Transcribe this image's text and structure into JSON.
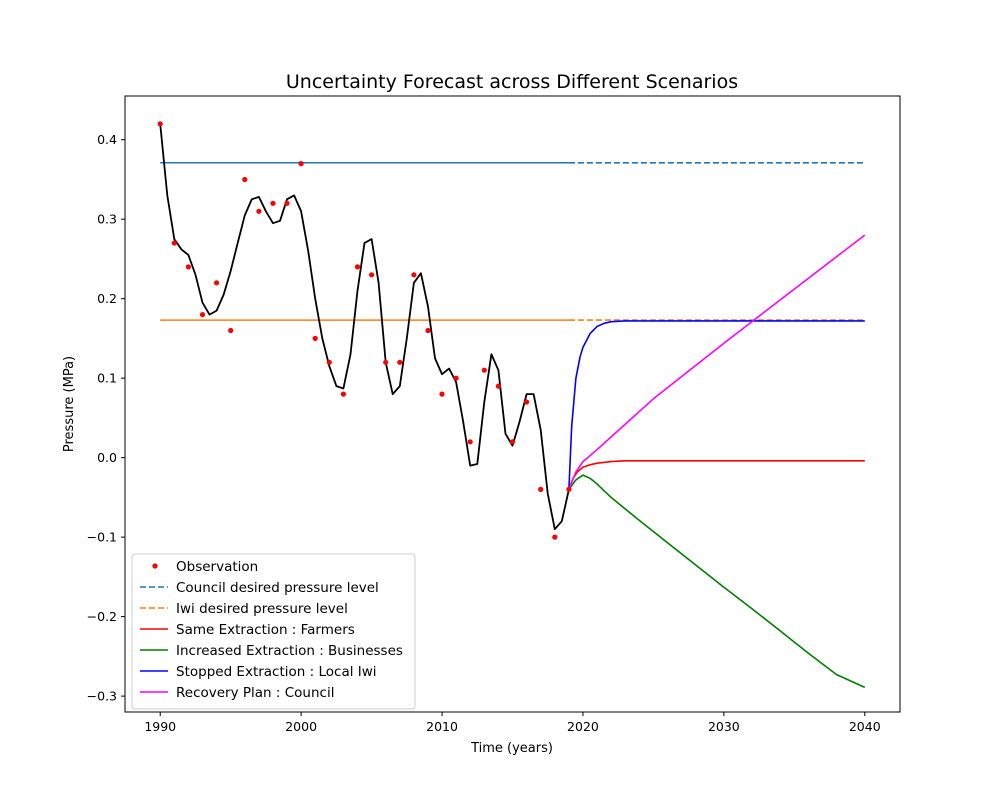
{
  "chart_data": {
    "type": "line",
    "title": "Uncertainty Forecast across Different Scenarios",
    "xlabel": "Time (years)",
    "ylabel": "Pressure (MPa)",
    "xlim": [
      1987.5,
      2042.5
    ],
    "ylim": [
      -0.32,
      0.455
    ],
    "x_ticks": [
      1990,
      2000,
      2010,
      2020,
      2030,
      2040
    ],
    "y_ticks": [
      -0.3,
      -0.2,
      -0.1,
      0.0,
      0.1,
      0.2,
      0.3,
      0.4
    ],
    "grid": false,
    "legend_position": "lower-left",
    "colors": {
      "observation": "#ff0000",
      "council": "#1f77b4",
      "iwi": "#ff7f0e",
      "same": "#ff0000",
      "increased": "#008000",
      "stopped": "#0000ff",
      "recovery": "#ff00ff",
      "model": "#000000"
    },
    "observations": {
      "name": "Observation",
      "x": [
        1990,
        1991,
        1992,
        1993,
        1994,
        1995,
        1996,
        1997,
        1998,
        1999,
        2000,
        2001,
        2002,
        2003,
        2004,
        2005,
        2006,
        2007,
        2008,
        2009,
        2010,
        2011,
        2012,
        2013,
        2014,
        2015,
        2016,
        2017,
        2018,
        2019
      ],
      "y": [
        0.42,
        0.27,
        0.24,
        0.18,
        0.22,
        0.16,
        0.35,
        0.31,
        0.32,
        0.32,
        0.37,
        0.15,
        0.12,
        0.08,
        0.24,
        0.23,
        0.12,
        0.12,
        0.23,
        0.16,
        0.08,
        0.1,
        0.02,
        0.11,
        0.09,
        0.02,
        0.07,
        -0.04,
        -0.1,
        -0.04
      ]
    },
    "model_fit": {
      "x": [
        1990,
        1990.5,
        1991,
        1991.5,
        1992,
        1992.5,
        1993,
        1993.5,
        1994,
        1994.5,
        1995,
        1995.5,
        1996,
        1996.5,
        1997,
        1997.5,
        1998,
        1998.5,
        1999,
        1999.5,
        2000,
        2000.5,
        2001,
        2001.5,
        2002,
        2002.5,
        2003,
        2003.5,
        2004,
        2004.5,
        2005,
        2005.5,
        2006,
        2006.5,
        2007,
        2007.5,
        2008,
        2008.5,
        2009,
        2009.5,
        2010,
        2010.5,
        2011,
        2011.5,
        2012,
        2012.5,
        2013,
        2013.5,
        2014,
        2014.5,
        2015,
        2015.5,
        2016,
        2016.5,
        2017,
        2017.5,
        2018,
        2018.5,
        2019
      ],
      "y": [
        0.42,
        0.33,
        0.275,
        0.262,
        0.255,
        0.23,
        0.195,
        0.18,
        0.185,
        0.205,
        0.235,
        0.27,
        0.305,
        0.325,
        0.328,
        0.31,
        0.295,
        0.298,
        0.325,
        0.33,
        0.31,
        0.26,
        0.2,
        0.15,
        0.115,
        0.09,
        0.087,
        0.13,
        0.21,
        0.27,
        0.275,
        0.22,
        0.12,
        0.08,
        0.09,
        0.15,
        0.22,
        0.232,
        0.19,
        0.125,
        0.105,
        0.112,
        0.095,
        0.045,
        -0.01,
        -0.008,
        0.07,
        0.13,
        0.11,
        0.03,
        0.015,
        0.045,
        0.08,
        0.08,
        0.035,
        -0.045,
        -0.09,
        -0.08,
        -0.04
      ]
    },
    "series": [
      {
        "key": "council",
        "name": "Council desired pressure level",
        "style": "dashed",
        "color": "#1f77b4",
        "x": [
          2019,
          2040
        ],
        "y": [
          0.371,
          0.371
        ]
      },
      {
        "key": "iwi",
        "name": "Iwi desired pressure level",
        "style": "dashed",
        "color": "#ff7f0e",
        "x": [
          2019,
          2040
        ],
        "y": [
          0.173,
          0.173
        ]
      },
      {
        "key": "same",
        "name": "Same Extraction : Farmers",
        "style": "solid",
        "color": "#ff0000",
        "x": [
          2019,
          2019.3,
          2019.6,
          2020,
          2020.5,
          2021,
          2021.5,
          2022,
          2023,
          2024,
          2026,
          2030,
          2035,
          2040
        ],
        "y": [
          -0.04,
          -0.026,
          -0.018,
          -0.012,
          -0.009,
          -0.007,
          -0.006,
          -0.005,
          -0.004,
          -0.004,
          -0.004,
          -0.004,
          -0.004,
          -0.004
        ]
      },
      {
        "key": "increased",
        "name": "Increased Extraction : Businesses",
        "style": "solid",
        "color": "#008000",
        "x": [
          2019,
          2019.5,
          2020,
          2020.5,
          2021,
          2022,
          2024,
          2026,
          2028,
          2030,
          2032,
          2034,
          2036,
          2038,
          2040
        ],
        "y": [
          -0.04,
          -0.028,
          -0.022,
          -0.026,
          -0.033,
          -0.05,
          -0.079,
          -0.107,
          -0.135,
          -0.163,
          -0.19,
          -0.218,
          -0.246,
          -0.273,
          -0.289
        ]
      },
      {
        "key": "stopped",
        "name": "Stopped Extraction : Local Iwi",
        "style": "solid",
        "color": "#0000ff",
        "x": [
          2019,
          2019.2,
          2019.5,
          2019.8,
          2020,
          2020.5,
          2021,
          2021.5,
          2022,
          2023,
          2024,
          2026,
          2030,
          2035,
          2040
        ],
        "y": [
          -0.04,
          0.04,
          0.1,
          0.127,
          0.139,
          0.156,
          0.165,
          0.169,
          0.171,
          0.172,
          0.172,
          0.172,
          0.172,
          0.172,
          0.172
        ]
      },
      {
        "key": "recovery",
        "name": "Recovery Plan : Council",
        "style": "solid",
        "color": "#ff00ff",
        "x": [
          2019,
          2019.5,
          2020,
          2021,
          2025,
          2030,
          2035,
          2040
        ],
        "y": [
          -0.04,
          -0.018,
          -0.005,
          0.01,
          0.074,
          0.144,
          0.212,
          0.28
        ]
      }
    ],
    "reference_lines": [
      {
        "key": "council",
        "x": [
          1990,
          2019
        ],
        "y": [
          0.371,
          0.371
        ],
        "color": "#1f77b4"
      },
      {
        "key": "iwi",
        "x": [
          1990,
          2019
        ],
        "y": [
          0.173,
          0.173
        ],
        "color": "#ff7f0e"
      }
    ]
  }
}
